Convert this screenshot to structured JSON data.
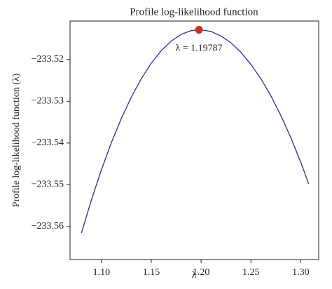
{
  "chart_data": {
    "type": "line",
    "title": "Profile log-likelihood function",
    "xlabel": "λ",
    "ylabel": "Profile log-likelihood function (λ)",
    "x": [
      1.08,
      1.09,
      1.1,
      1.11,
      1.12,
      1.13,
      1.14,
      1.15,
      1.16,
      1.17,
      1.18,
      1.19,
      1.19787,
      1.2,
      1.21,
      1.22,
      1.23,
      1.24,
      1.25,
      1.26,
      1.27,
      1.28,
      1.29,
      1.3,
      1.308
    ],
    "values": [
      -233.5615,
      -233.5536,
      -233.5464,
      -233.5399,
      -233.5341,
      -233.529,
      -233.5246,
      -233.5209,
      -233.5179,
      -233.5156,
      -233.514,
      -233.5131,
      -233.5129,
      -233.5129,
      -233.5133,
      -233.5144,
      -233.516,
      -233.5183,
      -233.5212,
      -233.5246,
      -233.5287,
      -233.5334,
      -233.5387,
      -233.5446,
      -233.5498
    ],
    "color": "#2b2b8f",
    "marker": {
      "x": 1.19787,
      "y": -233.5129,
      "color": "#c8321e"
    },
    "annotation": "λ = 1.19787",
    "xlim": [
      1.0685,
      1.318
    ],
    "ylim": [
      -233.5679,
      -233.5108
    ],
    "xticks": [
      {
        "value": 1.1,
        "label": "1.10"
      },
      {
        "value": 1.15,
        "label": "1.15"
      },
      {
        "value": 1.2,
        "label": "1.20"
      },
      {
        "value": 1.25,
        "label": "1.25"
      },
      {
        "value": 1.3,
        "label": "1.30"
      }
    ],
    "yticks": [
      {
        "value": -233.56,
        "label": "−233.56"
      },
      {
        "value": -233.55,
        "label": "−233.55"
      },
      {
        "value": -233.54,
        "label": "−233.54"
      },
      {
        "value": -233.53,
        "label": "−233.53"
      },
      {
        "value": -233.52,
        "label": "−233.52"
      }
    ]
  }
}
